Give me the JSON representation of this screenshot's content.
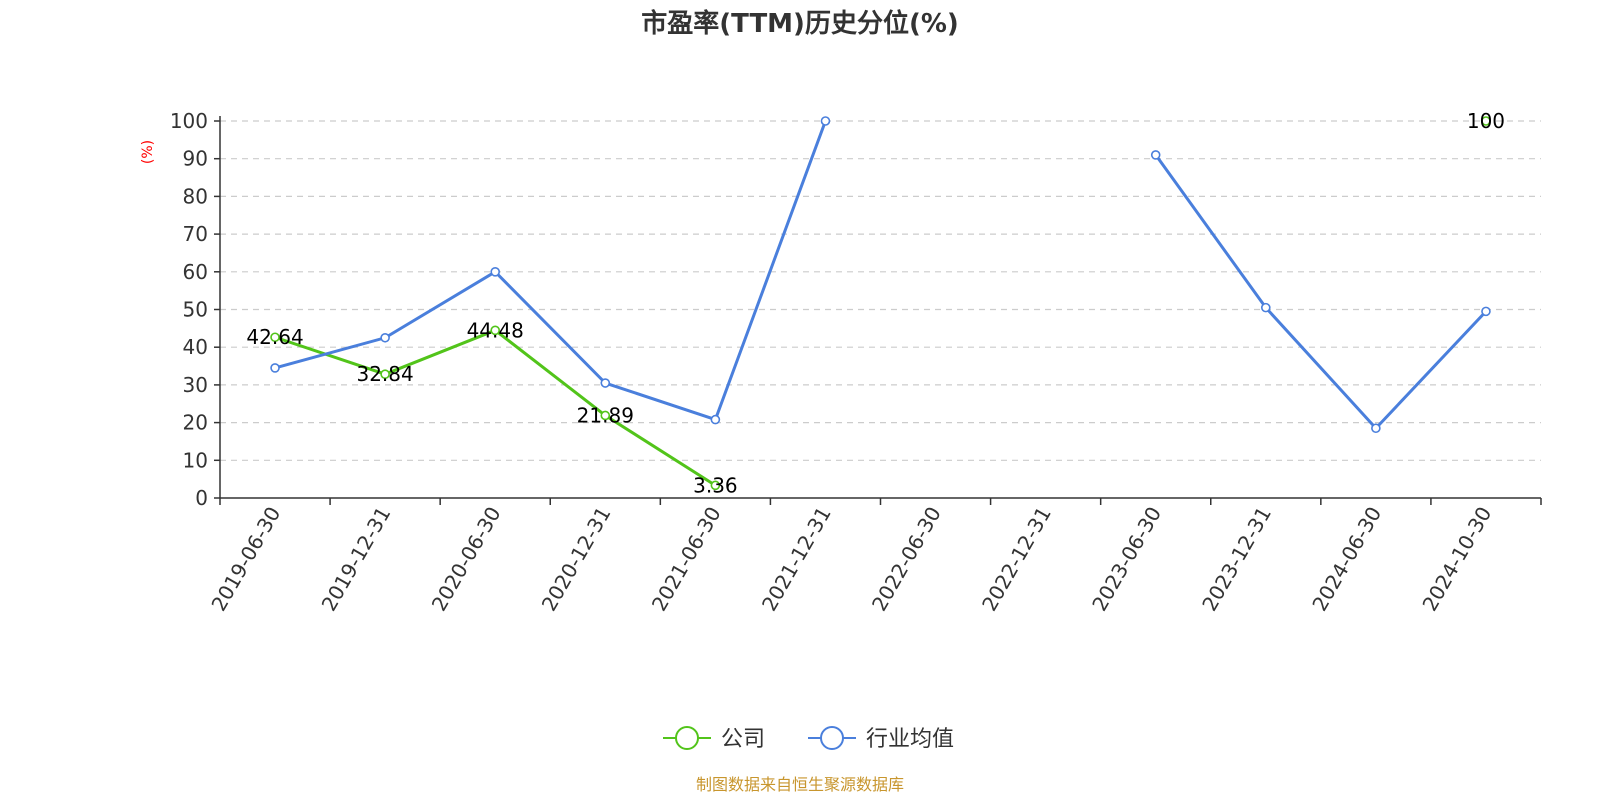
{
  "chart_data": {
    "type": "line",
    "title": "市盈率(TTM)历史分位(%)",
    "ylabel": "(%)",
    "ylim": [
      0,
      100
    ],
    "yticks": [
      0,
      10,
      20,
      30,
      40,
      50,
      60,
      70,
      80,
      90,
      100
    ],
    "categories": [
      "2019-06-30",
      "2019-12-31",
      "2020-06-30",
      "2020-12-31",
      "2021-06-30",
      "2021-12-31",
      "2022-06-30",
      "2022-12-31",
      "2023-06-30",
      "2023-12-31",
      "2024-06-30",
      "2024-10-30"
    ],
    "grid": true,
    "legend_position": "bottom",
    "series": [
      {
        "name": "公司",
        "color": "#52c41a",
        "values": [
          42.64,
          32.84,
          44.48,
          21.89,
          3.36,
          null,
          null,
          null,
          null,
          null,
          null,
          100
        ],
        "labels": [
          "42.64",
          "32.84",
          "44.48",
          "21.89",
          "3.36",
          null,
          null,
          null,
          null,
          null,
          null,
          "100"
        ]
      },
      {
        "name": "行业均值",
        "color": "#4a7fdc",
        "values": [
          34.5,
          42.5,
          60,
          30.5,
          20.8,
          100,
          null,
          null,
          91,
          50.5,
          18.5,
          49.5
        ],
        "labels": null
      }
    ],
    "source": "制图数据来自恒生聚源数据库",
    "source_color": "#c8962e",
    "ylabel_color": "#ff0000"
  }
}
